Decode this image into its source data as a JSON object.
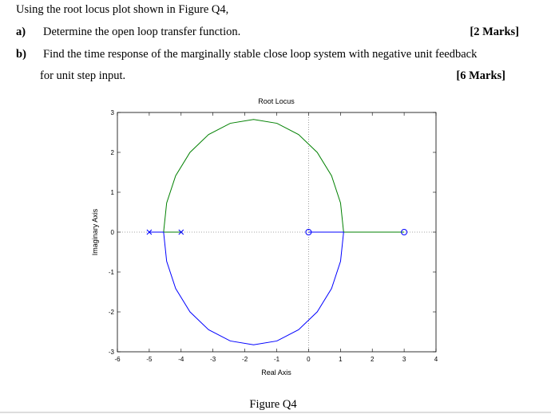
{
  "question": {
    "intro": "Using the root locus plot shown in Figure Q4,",
    "parts": [
      {
        "label": "a)",
        "text": "Determine the open loop transfer function.",
        "marks": "[2 Marks]"
      },
      {
        "label": "b)",
        "text": "Find the time response of the marginally stable close loop system with negative unit feedback",
        "text2": "for unit step input.",
        "marks": "[6 Marks]"
      }
    ]
  },
  "chart_data": {
    "type": "line",
    "title": "Root Locus",
    "x_label": "Real Axis",
    "y_label": "Imaginary Axis",
    "xlim": [
      -6,
      4
    ],
    "ylim": [
      -3,
      3
    ],
    "xticks": [
      -6,
      -5,
      -4,
      -3,
      -2,
      -1,
      0,
      1,
      2,
      3,
      4
    ],
    "yticks": [
      -3,
      -2,
      -1,
      0,
      1,
      2,
      3
    ],
    "series": [
      {
        "color": "#008000",
        "x": [
          -4,
          -4.55,
          -4.454,
          -4.172,
          -3.723,
          -3.138,
          -2.456,
          -1.725,
          -0.994,
          -0.313,
          0.273,
          0.722,
          1.004,
          1.1,
          3
        ],
        "values": [
          0,
          0,
          0.731,
          1.413,
          1.998,
          2.447,
          2.729,
          2.825,
          2.729,
          2.447,
          1.998,
          1.413,
          0.731,
          0,
          0
        ]
      },
      {
        "color": "#0000ff",
        "x": [
          -5,
          -4.55,
          -4.454,
          -4.172,
          -3.723,
          -3.138,
          -2.456,
          -1.725,
          -0.994,
          -0.313,
          0.273,
          0.722,
          1.004,
          1.1,
          0
        ],
        "values": [
          0,
          0,
          -0.731,
          -1.413,
          -1.998,
          -2.447,
          -2.729,
          -2.825,
          -2.729,
          -2.447,
          -1.998,
          -1.413,
          -0.731,
          0,
          0
        ]
      }
    ],
    "poles": {
      "color": "#0000ff",
      "x": [
        -5,
        -4
      ],
      "values": [
        0,
        0
      ]
    },
    "zeros": {
      "color": "#0000ff",
      "x": [
        0,
        3
      ],
      "values": [
        0,
        0
      ]
    }
  },
  "caption": "Figure Q4"
}
